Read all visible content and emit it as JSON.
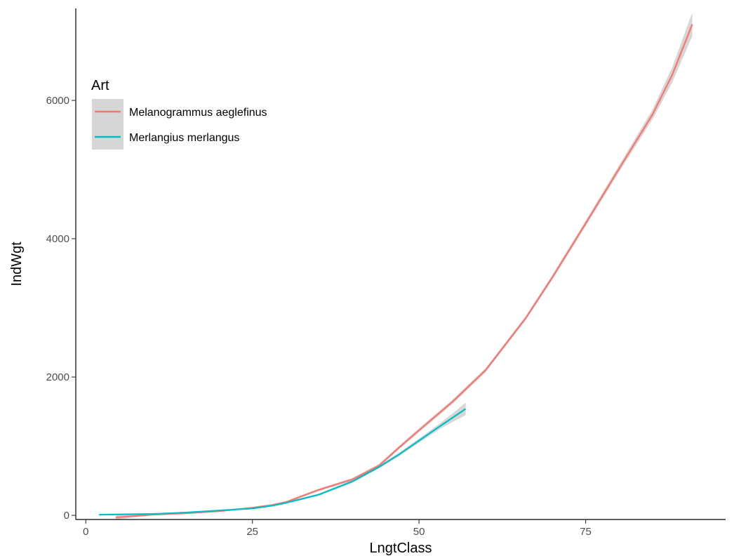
{
  "chart_data": {
    "type": "line",
    "title": "",
    "xlabel": "LngtClass",
    "ylabel": "IndWgt",
    "xlim": [
      -1.5,
      96
    ],
    "ylim": [
      -60,
      7330
    ],
    "xticks": [
      0,
      25,
      50,
      75
    ],
    "yticks": [
      0,
      2000,
      4000,
      6000
    ],
    "grid": false,
    "legend": {
      "title": "Art",
      "position": "top-left"
    },
    "band_color": "#999999",
    "series": [
      {
        "name": "Melanogrammus aeglefinus",
        "color": "#F8766D",
        "x": [
          4.5,
          10,
          15,
          20,
          25,
          28,
          30,
          35,
          40,
          44,
          47,
          50,
          55,
          60,
          66,
          70,
          75,
          80,
          85,
          88,
          91
        ],
        "y": [
          -30,
          10,
          30,
          60,
          110,
          150,
          190,
          370,
          520,
          720,
          980,
          1230,
          1640,
          2100,
          2850,
          3440,
          4220,
          5010,
          5790,
          6370,
          7100
        ],
        "band_halfwidth": [
          30,
          12,
          10,
          10,
          12,
          12,
          15,
          18,
          20,
          22,
          25,
          28,
          30,
          30,
          30,
          35,
          40,
          50,
          70,
          110,
          170
        ]
      },
      {
        "name": "Merlangius merlangus",
        "color": "#00BFC4",
        "x": [
          2,
          10,
          15,
          20,
          25,
          28,
          30,
          35,
          40,
          44,
          47,
          50,
          53,
          55,
          57
        ],
        "y": [
          10,
          20,
          40,
          70,
          100,
          140,
          180,
          300,
          490,
          700,
          880,
          1080,
          1280,
          1410,
          1540
        ],
        "band_halfwidth": [
          10,
          8,
          8,
          10,
          12,
          12,
          14,
          16,
          20,
          22,
          25,
          30,
          40,
          60,
          90
        ]
      }
    ]
  }
}
